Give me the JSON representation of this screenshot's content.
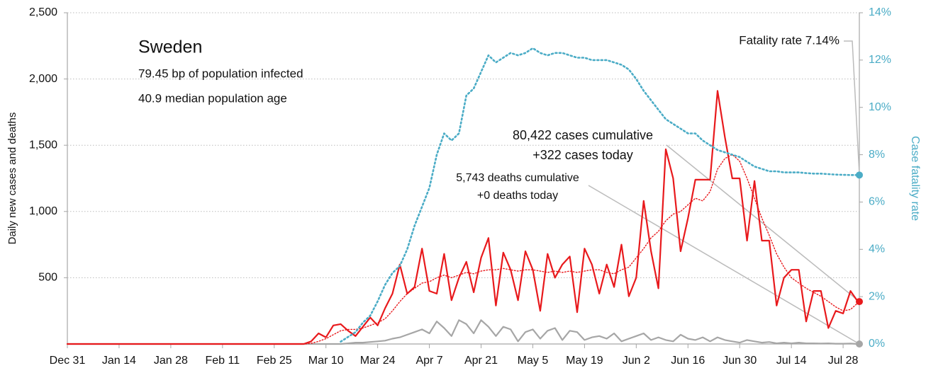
{
  "chart_data": {
    "type": "line",
    "annotations": [
      "Sweden",
      "79.45 bp of population infected",
      "40.9 median population age",
      "Fatality rate 7.14%",
      "80,422 cases cumulative",
      "+322 cases today",
      "5,743 deaths cumulative",
      "+0 deaths today"
    ],
    "y_label": "Daily new cases and deaths",
    "y2_label": "Case fatality rate",
    "categories": [
      "Dec 31",
      null,
      null,
      null,
      null,
      null,
      null,
      "Jan 14",
      null,
      null,
      null,
      null,
      null,
      null,
      "Jan 28",
      null,
      null,
      null,
      null,
      null,
      null,
      "Feb 11",
      null,
      null,
      null,
      null,
      null,
      null,
      "Feb 25",
      null,
      null,
      null,
      null,
      null,
      null,
      "Mar 10",
      null,
      null,
      null,
      null,
      null,
      null,
      "Mar 24",
      null,
      null,
      null,
      null,
      null,
      null,
      "Apr 7",
      null,
      null,
      null,
      null,
      null,
      null,
      "Apr 21",
      null,
      null,
      null,
      null,
      null,
      null,
      "May 5",
      null,
      null,
      null,
      null,
      null,
      null,
      "May 19",
      null,
      null,
      null,
      null,
      null,
      null,
      "Jun 2",
      null,
      null,
      null,
      null,
      null,
      null,
      "Jun 16",
      null,
      null,
      null,
      null,
      null,
      null,
      "Jun 30",
      null,
      null,
      null,
      null,
      null,
      null,
      "Jul 14",
      null,
      null,
      null,
      null,
      null,
      null,
      "Jul 28",
      null,
      null
    ],
    "series": [
      {
        "color": "#e8191c",
        "style": "solid",
        "values": [
          0,
          0,
          0,
          0,
          0,
          0,
          0,
          0,
          0,
          0,
          0,
          0,
          0,
          0,
          0,
          0,
          0,
          0,
          0,
          0,
          0,
          0,
          0,
          0,
          0,
          0,
          0,
          0,
          0,
          0,
          0,
          0,
          0,
          20,
          80,
          50,
          140,
          150,
          100,
          60,
          130,
          200,
          140,
          270,
          380,
          600,
          380,
          430,
          720,
          400,
          380,
          680,
          330,
          500,
          620,
          390,
          650,
          800,
          290,
          690,
          560,
          330,
          700,
          560,
          250,
          680,
          500,
          600,
          660,
          240,
          720,
          600,
          380,
          600,
          430,
          750,
          360,
          500,
          1080,
          700,
          420,
          1470,
          1250,
          700,
          950,
          1240,
          1240,
          1240,
          1910,
          1560,
          1250,
          1250,
          780,
          1230,
          780,
          780,
          290,
          500,
          560,
          560,
          170,
          400,
          400,
          120,
          250,
          230,
          400,
          320
        ]
      },
      {
        "color": "#e8191c",
        "style": "dotted",
        "values": [
          0,
          0,
          0,
          0,
          0,
          0,
          0,
          0,
          0,
          0,
          0,
          0,
          0,
          0,
          0,
          0,
          0,
          0,
          0,
          0,
          0,
          0,
          0,
          0,
          0,
          0,
          0,
          0,
          0,
          0,
          0,
          0,
          0,
          5,
          20,
          40,
          70,
          100,
          110,
          110,
          120,
          140,
          160,
          190,
          250,
          320,
          380,
          420,
          460,
          470,
          500,
          520,
          500,
          520,
          540,
          530,
          550,
          560,
          560,
          570,
          560,
          550,
          560,
          560,
          550,
          540,
          550,
          540,
          550,
          540,
          550,
          560,
          560,
          540,
          530,
          560,
          580,
          650,
          720,
          800,
          850,
          930,
          980,
          1000,
          1050,
          1100,
          1080,
          1150,
          1320,
          1400,
          1430,
          1380,
          1250,
          1100,
          950,
          820,
          680,
          580,
          500,
          460,
          420,
          390,
          360,
          320,
          280,
          250,
          260,
          310
        ]
      },
      {
        "color": "#a6a6a6",
        "style": "solid",
        "values": [
          0,
          0,
          0,
          0,
          0,
          0,
          0,
          0,
          0,
          0,
          0,
          0,
          0,
          0,
          0,
          0,
          0,
          0,
          0,
          0,
          0,
          0,
          0,
          0,
          0,
          0,
          0,
          0,
          0,
          0,
          0,
          0,
          0,
          0,
          0,
          0,
          0,
          0,
          5,
          10,
          10,
          15,
          20,
          25,
          40,
          50,
          70,
          90,
          110,
          80,
          170,
          120,
          60,
          180,
          150,
          80,
          180,
          130,
          60,
          130,
          110,
          20,
          90,
          110,
          40,
          100,
          120,
          30,
          100,
          90,
          30,
          50,
          60,
          40,
          80,
          20,
          40,
          60,
          80,
          30,
          50,
          30,
          20,
          70,
          40,
          30,
          50,
          20,
          50,
          30,
          20,
          10,
          30,
          20,
          10,
          15,
          5,
          10,
          5,
          10,
          5,
          5,
          3,
          5,
          2,
          2,
          3,
          0
        ]
      },
      {
        "color": "#4bacc6",
        "style": "dotted",
        "axis": "y2",
        "values": [
          null,
          null,
          null,
          null,
          null,
          null,
          null,
          null,
          null,
          null,
          null,
          null,
          null,
          null,
          null,
          null,
          null,
          null,
          null,
          null,
          null,
          null,
          null,
          null,
          null,
          null,
          null,
          null,
          null,
          null,
          null,
          null,
          null,
          null,
          null,
          null,
          null,
          0.1,
          0.3,
          0.5,
          0.9,
          1.2,
          1.8,
          2.5,
          3.0,
          3.3,
          4.0,
          5.0,
          5.8,
          6.6,
          8.0,
          8.9,
          8.6,
          8.9,
          10.5,
          10.8,
          11.5,
          12.2,
          11.9,
          12.1,
          12.3,
          12.2,
          12.3,
          12.5,
          12.3,
          12.2,
          12.3,
          12.3,
          12.2,
          12.1,
          12.1,
          12.0,
          12.0,
          12.0,
          11.9,
          11.8,
          11.6,
          11.2,
          10.7,
          10.3,
          9.9,
          9.5,
          9.3,
          9.1,
          8.9,
          8.9,
          8.6,
          8.4,
          8.2,
          8.1,
          8.0,
          7.9,
          7.7,
          7.5,
          7.4,
          7.3,
          7.3,
          7.25,
          7.25,
          7.25,
          7.22,
          7.2,
          7.2,
          7.18,
          7.16,
          7.15,
          7.14,
          7.14
        ]
      }
    ],
    "ylim": [
      0,
      2500
    ],
    "yticks": [
      500,
      {
        "value": 1000,
        "label": "1,000"
      },
      {
        "value": 1500,
        "label": "1,500"
      },
      {
        "value": 2000,
        "label": "2,000"
      },
      {
        "value": 2500,
        "label": "2,500"
      }
    ],
    "y2lim": [
      0,
      14
    ],
    "y2ticks": [
      {
        "value": 0,
        "label": "0%"
      },
      {
        "value": 2,
        "label": "2%"
      },
      {
        "value": 4,
        "label": "4%"
      },
      {
        "value": 6,
        "label": "6%"
      },
      {
        "value": 8,
        "label": "8%"
      },
      {
        "value": 10,
        "label": "10%"
      },
      {
        "value": 12,
        "label": "12%"
      },
      {
        "value": 14,
        "label": "14%"
      }
    ],
    "grid": true
  }
}
